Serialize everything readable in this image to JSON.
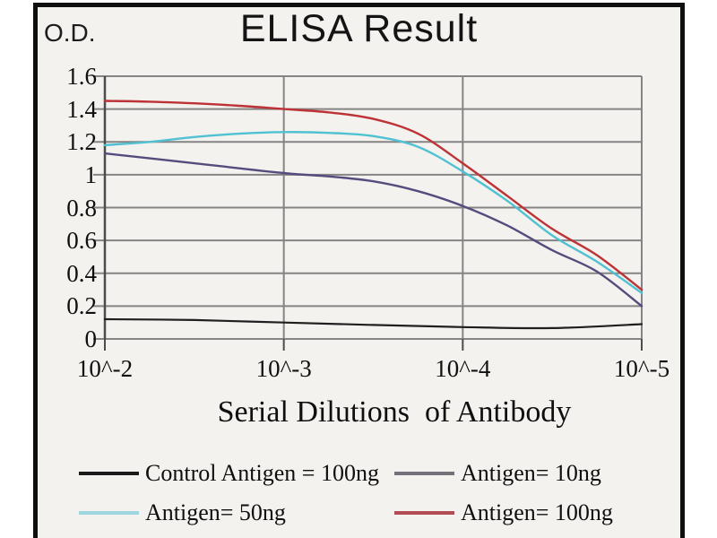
{
  "chart_data": {
    "type": "line",
    "title": "ELISA Result",
    "ylabel": "O.D.",
    "xlabel": "Serial Dilutions  of Antibody",
    "x_tick_labels": [
      "10^-2",
      "10^-3",
      "10^-4",
      "10^-5"
    ],
    "x_tick_values": [
      -2,
      -3,
      -4,
      -5
    ],
    "y_tick_labels": [
      "1.6",
      "1.4",
      "1.2",
      "1",
      "0.8",
      "0.6",
      "0.4",
      "0.2",
      "0"
    ],
    "y_tick_values": [
      1.6,
      1.4,
      1.2,
      1,
      0.8,
      0.6,
      0.4,
      0.2,
      0
    ],
    "ylim": [
      0,
      1.6
    ],
    "grid": true,
    "legend_position": "bottom",
    "series": [
      {
        "name": "Control Antigen = 100ng",
        "color": "#1f1f1f",
        "x": [
          -2,
          -2.5,
          -3,
          -3.5,
          -4,
          -4.5,
          -5
        ],
        "y": [
          0.12,
          0.115,
          0.1,
          0.085,
          0.072,
          0.066,
          0.09
        ]
      },
      {
        "name": "Antigen= 10ng",
        "color": "#574b7e",
        "x": [
          -2,
          -2.5,
          -3,
          -3.25,
          -3.5,
          -3.75,
          -4,
          -4.25,
          -4.5,
          -4.75,
          -5
        ],
        "y": [
          1.13,
          1.07,
          1.01,
          0.99,
          0.96,
          0.9,
          0.81,
          0.69,
          0.54,
          0.41,
          0.2
        ]
      },
      {
        "name": "Antigen= 50ng",
        "color": "#4fc1d2",
        "x": [
          -2,
          -2.25,
          -2.5,
          -2.75,
          -3,
          -3.25,
          -3.5,
          -3.75,
          -4,
          -4.25,
          -4.5,
          -4.75,
          -5
        ],
        "y": [
          1.18,
          1.2,
          1.23,
          1.25,
          1.26,
          1.255,
          1.235,
          1.17,
          1.02,
          0.84,
          0.63,
          0.47,
          0.28
        ]
      },
      {
        "name": "Antigen= 100ng",
        "color": "#bd3236",
        "x": [
          -2,
          -2.25,
          -2.5,
          -2.75,
          -3,
          -3.25,
          -3.5,
          -3.75,
          -4,
          -4.25,
          -4.5,
          -4.75,
          -5
        ],
        "y": [
          1.45,
          1.445,
          1.435,
          1.42,
          1.4,
          1.38,
          1.34,
          1.25,
          1.07,
          0.87,
          0.67,
          0.51,
          0.3
        ]
      }
    ],
    "legend": [
      {
        "label": "Control Antigen = 100ng",
        "color": "#1a1a1a"
      },
      {
        "label": "Antigen= 10ng",
        "color": "#75717a"
      },
      {
        "label": "Antigen= 50ng",
        "color": "#9dd6de"
      },
      {
        "label": "Antigen= 100ng",
        "color": "#b24d55"
      }
    ]
  }
}
